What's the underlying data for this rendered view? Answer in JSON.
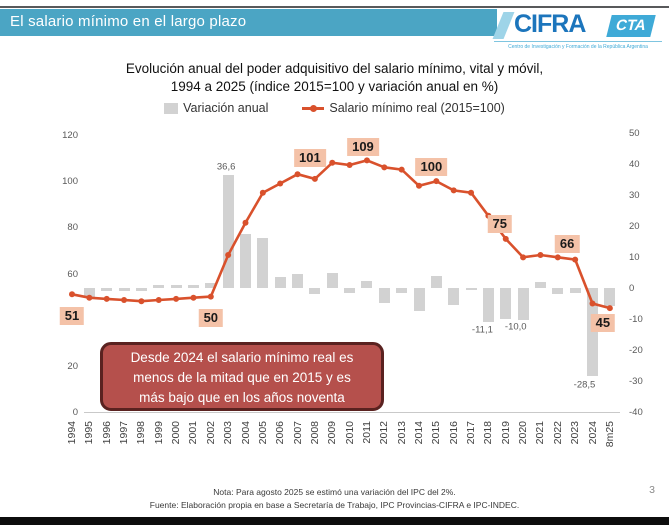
{
  "page": {
    "page_number": "3"
  },
  "header": {
    "title": "El salario mínimo en el largo plazo",
    "bar_color": "#4BA5C4"
  },
  "logo": {
    "name": "CIFRA",
    "suffix": "CTA",
    "tagline": "Centro de Investigación y Formación de la República Argentina"
  },
  "chart_data": {
    "type": "combo-bar-line",
    "title_line1": "Evolución anual del poder adquisitivo del salario mínimo, vital y móvil,",
    "title_line2": "1994 a 2025 (índice 2015=100 y variación anual en %)",
    "legend": [
      {
        "label": "Variación anual",
        "type": "bar",
        "color": "#D2D2D2"
      },
      {
        "label": "Salario mínimo real (2015=100)",
        "type": "line",
        "color": "#D9512C"
      }
    ],
    "categories": [
      "1994",
      "1995",
      "1996",
      "1997",
      "1998",
      "1999",
      "2000",
      "2001",
      "2002",
      "2003",
      "2004",
      "2005",
      "2006",
      "2007",
      "2008",
      "2009",
      "2010",
      "2011",
      "2012",
      "2013",
      "2014",
      "2015",
      "2016",
      "2017",
      "2018",
      "2019",
      "2020",
      "2021",
      "2022",
      "2023",
      "2024",
      "8m25"
    ],
    "series": [
      {
        "name": "Variación anual",
        "type": "bar",
        "axis": "right",
        "values": [
          null,
          -3,
          -1,
          -1,
          -1,
          1,
          1,
          1,
          1.5,
          36.6,
          17.5,
          16,
          3.5,
          4.5,
          -2,
          5,
          -1.7,
          2.2,
          -4.7,
          -1.5,
          -7.3,
          3.9,
          -5.4,
          -0.5,
          -11.1,
          -10,
          -10.3,
          2,
          -2,
          -1.5,
          -28.5,
          -5.8
        ]
      },
      {
        "name": "Salario mínimo real (2015=100)",
        "type": "line",
        "axis": "left",
        "values": [
          51,
          49.5,
          49,
          48.5,
          48,
          48.5,
          49,
          49.5,
          50,
          68,
          82,
          95,
          99,
          103,
          101,
          108,
          107,
          109,
          106,
          105,
          98,
          100,
          96,
          95,
          85,
          75,
          67,
          68,
          67,
          66,
          47,
          45
        ]
      }
    ],
    "left_axis": {
      "min": 0,
      "max": 120,
      "ticks": [
        120,
        100,
        80,
        60,
        40,
        20,
        0
      ]
    },
    "right_axis": {
      "min": -40,
      "max": 50,
      "ticks": [
        50,
        40,
        30,
        20,
        10,
        0,
        -10,
        -20,
        -30,
        -40
      ]
    },
    "line_labels": [
      {
        "category": "1994",
        "text": "51"
      },
      {
        "category": "2002",
        "text": "50"
      },
      {
        "category": "2008",
        "text": "101"
      },
      {
        "category": "2011",
        "text": "109"
      },
      {
        "category": "2015",
        "text": "100"
      },
      {
        "category": "2019",
        "text": "75"
      },
      {
        "category": "2023",
        "text": "66"
      },
      {
        "category": "8m25",
        "text": "45"
      }
    ],
    "bar_labels": [
      {
        "category": "2003",
        "text": "36,6"
      },
      {
        "category": "2018",
        "text": "-11,1"
      },
      {
        "category": "2019",
        "text": "-10,0"
      },
      {
        "category": "2024",
        "text": "-28,5"
      }
    ],
    "colors": {
      "bar": "#D2D2D2",
      "line": "#D9512C",
      "point_label_bg": "#F4C2A8"
    }
  },
  "callout": {
    "line1": "Desde 2024 el salario mínimo real es",
    "line2": "menos de la mitad que en 2015 y es",
    "line3": "más bajo que en los años noventa"
  },
  "footer": {
    "note": "Nota: Para agosto 2025 se estimó una variación del IPC del 2%.",
    "source": "Fuente: Elaboración propia en base a Secretaría de Trabajo, IPC Provincias-CIFRA e IPC-INDEC."
  }
}
